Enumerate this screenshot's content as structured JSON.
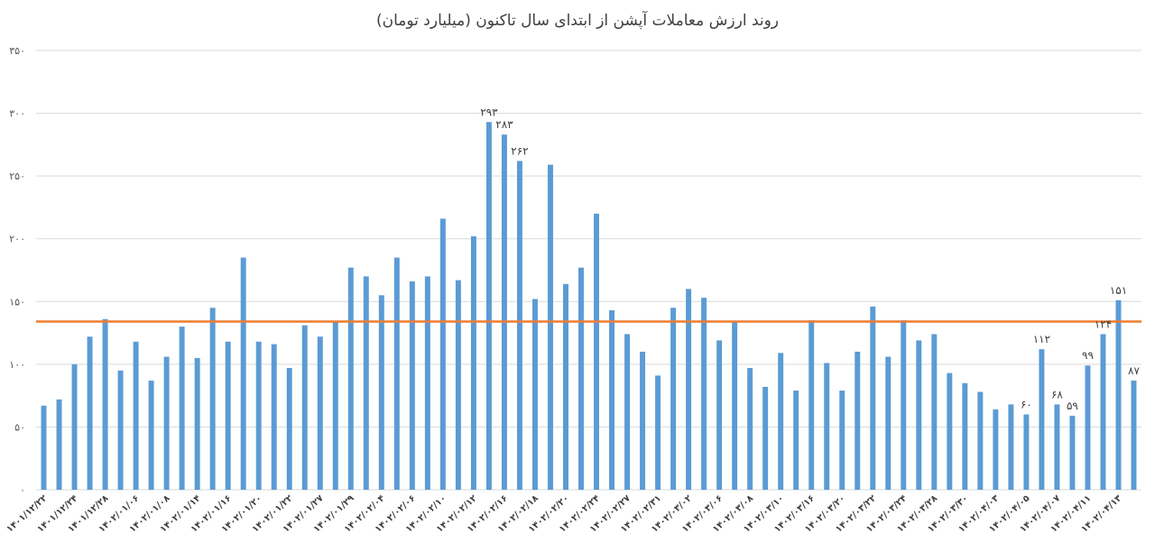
{
  "chart_data": {
    "type": "bar",
    "title": "روند ارزش معاملات آپشن از ابتدای سال تاکنون (میلیارد تومان)",
    "ylim": [
      0,
      350
    ],
    "y_ticks": [
      "۰",
      "۵۰",
      "۱۰۰",
      "۱۵۰",
      "۲۰۰",
      "۲۵۰",
      "۳۰۰",
      "۳۵۰"
    ],
    "grid": true,
    "legend": "none",
    "colors": {
      "bar": "#5b9bd5",
      "reference_line": "#ed7d31",
      "grid": "#d9d9d9"
    },
    "categories": [
      "۱۴۰۱/۱۲/۲۲",
      "",
      "۱۴۰۱/۱۲/۲۴",
      "",
      "۱۴۰۱/۱۲/۲۸",
      "",
      "۱۴۰۲/۰۱/۰۶",
      "",
      "۱۴۰۲/۰۱/۰۸",
      "",
      "۱۴۰۲/۰۱/۱۴",
      "",
      "۱۴۰۲/۰۱/۱۶",
      "",
      "۱۴۰۲/۰۱/۲۰",
      "",
      "۱۴۰۲/۰۱/۲۲",
      "",
      "۱۴۰۲/۰۱/۲۷",
      "",
      "۱۴۰۲/۰۱/۲۹",
      "",
      "۱۴۰۲/۰۲/۰۴",
      "",
      "۱۴۰۲/۰۲/۰۶",
      "",
      "۱۴۰۲/۰۲/۱۰",
      "",
      "۱۴۰۲/۰۲/۱۲",
      "",
      "۱۴۰۲/۰۲/۱۶",
      "",
      "۱۴۰۲/۰۲/۱۸",
      "",
      "۱۴۰۲/۰۲/۲۰",
      "",
      "۱۴۰۲/۰۲/۲۴",
      "",
      "۱۴۰۲/۰۲/۲۷",
      "",
      "۱۴۰۲/۰۲/۳۱",
      "",
      "۱۴۰۲/۰۳/۰۲",
      "",
      "۱۴۰۲/۰۳/۰۶",
      "",
      "۱۴۰۲/۰۳/۰۸",
      "",
      "۱۴۰۲/۰۳/۱۰",
      "",
      "۱۴۰۲/۰۳/۱۶",
      "",
      "۱۴۰۲/۰۳/۲۰",
      "",
      "۱۴۰۲/۰۳/۲۲",
      "",
      "۱۴۰۲/۰۳/۲۴",
      "",
      "۱۴۰۲/۰۳/۲۸",
      "",
      "۱۴۰۲/۰۳/۳۰",
      "",
      "۱۴۰۲/۰۴/۰۳",
      "",
      "۱۴۰۲/۰۴/۰۵",
      "",
      "۱۴۰۲/۰۴/۰۷",
      "",
      "۱۴۰۲/۰۴/۱۱",
      "",
      "۱۴۰۲/۰۴/۱۳",
      ""
    ],
    "values": [
      67,
      72,
      100,
      122,
      136,
      95,
      118,
      87,
      106,
      130,
      105,
      145,
      118,
      185,
      118,
      116,
      97,
      131,
      122,
      134,
      177,
      170,
      155,
      185,
      166,
      170,
      216,
      167,
      202,
      293,
      283,
      262,
      152,
      259,
      164,
      177,
      220,
      143,
      124,
      110,
      91,
      145,
      160,
      153,
      119,
      134,
      97,
      82,
      109,
      79,
      135,
      101,
      79,
      110,
      146,
      106,
      135,
      119,
      124,
      93,
      85,
      78,
      64,
      68,
      60,
      112,
      68,
      59,
      99,
      124,
      151,
      87
    ],
    "data_labels": [
      {
        "index": 29,
        "text": "۲۹۳"
      },
      {
        "index": 30,
        "text": "۲۸۳"
      },
      {
        "index": 31,
        "text": "۲۶۲"
      },
      {
        "index": 64,
        "text": "۶۰"
      },
      {
        "index": 65,
        "text": "۱۱۲"
      },
      {
        "index": 66,
        "text": "۶۸"
      },
      {
        "index": 67,
        "text": "۵۹"
      },
      {
        "index": 68,
        "text": "۹۹"
      },
      {
        "index": 69,
        "text": "۱۲۴"
      },
      {
        "index": 70,
        "text": "۱۵۱"
      },
      {
        "index": 71,
        "text": "۸۷"
      }
    ],
    "reference_line": {
      "value": 134
    }
  }
}
